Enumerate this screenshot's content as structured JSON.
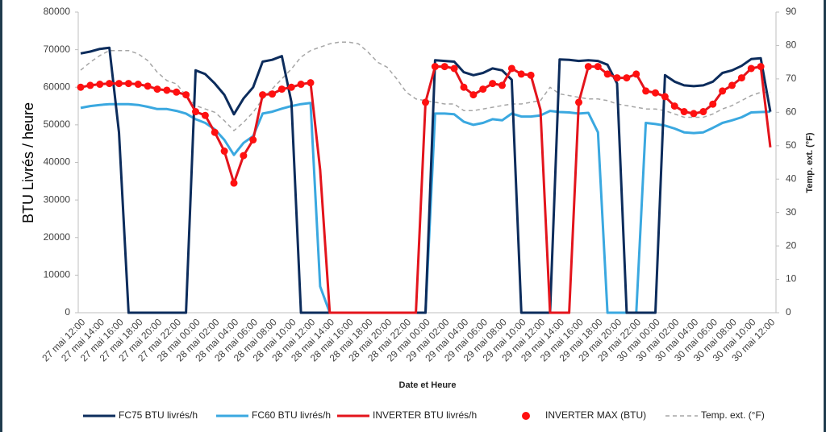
{
  "chart_data": {
    "type": "line",
    "y_label": "BTU Livrés / heure",
    "y2_label": "Temp. ext. (°F)",
    "x_label": "Date et Heure",
    "categories": [
      "27 mai 12:00",
      null,
      "27 mai 14:00",
      null,
      "27 mai 16:00",
      null,
      "27 mai 18:00",
      null,
      "27 mai 20:00",
      null,
      "27 mai 22:00",
      null,
      "28 mai 00:00",
      null,
      "28 mai 02:00",
      null,
      "28 mai 04:00",
      null,
      "28 mai 06:00",
      null,
      "28 mai 08:00",
      null,
      "28 mai 10:00",
      null,
      "28 mai 12:00",
      null,
      "28 mai 14:00",
      null,
      "28 mai 16:00",
      null,
      "28 mai 18:00",
      null,
      "28 mai 20:00",
      null,
      "28 mai 22:00",
      null,
      "29 mai 00:00",
      null,
      "29 mai 02:00",
      null,
      "29 mai 04:00",
      null,
      "29 mai 06:00",
      null,
      "29 mai 08:00",
      null,
      "29 mai 10:00",
      null,
      "29 mai 12:00",
      null,
      "29 mai 14:00",
      null,
      "29 mai 16:00",
      null,
      "29 mai 18:00",
      null,
      "29 mai 20:00",
      null,
      "29 mai 22:00",
      null,
      "30 mai 00:00",
      null,
      "30 mai 02:00",
      null,
      "30 mai 04:00",
      null,
      "30 mai 06:00",
      null,
      "30 mai 08:00",
      null,
      "30 mai 10:00",
      null,
      "30 mai 12:00"
    ],
    "ylim": [
      0,
      80000
    ],
    "yticks": [
      0,
      10000,
      20000,
      30000,
      40000,
      50000,
      60000,
      70000,
      80000
    ],
    "y2lim": [
      0,
      90
    ],
    "y2ticks": [
      0,
      10,
      20,
      30,
      40,
      50,
      60,
      70,
      80,
      90
    ],
    "grid": false,
    "legend": "bottom",
    "series": [
      {
        "name": "FC75 BTU livrés/h",
        "color": "#0c2c5c",
        "mode": "line",
        "dashed": false,
        "values": [
          69000,
          69500,
          70200,
          70500,
          48000,
          0,
          0,
          0,
          0,
          0,
          0,
          0,
          64500,
          63500,
          61000,
          58000,
          52800,
          57000,
          60000,
          66800,
          67300,
          68300,
          56000,
          0,
          0,
          0,
          0,
          0,
          0,
          0,
          0,
          0,
          0,
          0,
          0,
          0,
          0,
          67200,
          67000,
          66800,
          64000,
          63200,
          63800,
          65000,
          64500,
          62000,
          0,
          0,
          0,
          0,
          67400,
          67300,
          67000,
          67200,
          67000,
          66000,
          61000,
          0,
          0,
          0,
          0,
          63200,
          61500,
          60500,
          60300,
          60500,
          61500,
          63800,
          64500,
          65700,
          67500,
          67700,
          53500
        ]
      },
      {
        "name": "FC60 BTU livrés/h",
        "color": "#3aa8e0",
        "mode": "line",
        "dashed": false,
        "values": [
          54500,
          55000,
          55300,
          55500,
          55500,
          55500,
          55300,
          54800,
          54200,
          54200,
          53700,
          53000,
          51500,
          50500,
          48800,
          46000,
          42000,
          45200,
          47000,
          53000,
          53500,
          54300,
          55000,
          55500,
          55800,
          7000,
          0,
          0,
          0,
          0,
          0,
          0,
          0,
          0,
          0,
          0,
          0,
          53000,
          53000,
          52800,
          50800,
          50000,
          50500,
          51500,
          51200,
          53000,
          52200,
          52200,
          52500,
          53700,
          53400,
          53300,
          53000,
          53200,
          48000,
          0,
          0,
          0,
          0,
          50500,
          50200,
          49800,
          49000,
          48000,
          47800,
          48000,
          49200,
          50500,
          51200,
          52000,
          53300,
          53400,
          53500
        ]
      },
      {
        "name": "INVERTER BTU livrés/h",
        "color": "#e3141c",
        "mode": "line",
        "dashed": false,
        "values": [
          60000,
          60500,
          60800,
          61000,
          61000,
          61000,
          60800,
          60300,
          59500,
          59200,
          58700,
          58000,
          53500,
          52500,
          48000,
          43000,
          34500,
          41800,
          46000,
          58000,
          58200,
          59500,
          60000,
          60800,
          61200,
          38000,
          0,
          0,
          0,
          0,
          0,
          0,
          0,
          0,
          0,
          0,
          56000,
          65500,
          65500,
          65000,
          60000,
          58000,
          59500,
          61000,
          60500,
          65000,
          63500,
          63200,
          54000,
          0,
          0,
          0,
          56000,
          65500,
          65500,
          63500,
          62500,
          62500,
          63500,
          59000,
          58500,
          57500,
          55000,
          53500,
          53000,
          53500,
          55500,
          59000,
          60500,
          62500,
          65000,
          65500,
          44000
        ]
      },
      {
        "name": "INVERTER MAX (BTU)",
        "color": "#ff1010",
        "mode": "markers",
        "dashed": false,
        "values": [
          60000,
          60500,
          60800,
          61000,
          61000,
          61000,
          60800,
          60300,
          59500,
          59200,
          58700,
          58000,
          53500,
          52500,
          48000,
          43000,
          34500,
          41800,
          46000,
          58000,
          58200,
          59500,
          60000,
          60800,
          61200,
          null,
          null,
          null,
          null,
          null,
          null,
          null,
          null,
          null,
          null,
          null,
          56000,
          65500,
          65500,
          65000,
          60000,
          58000,
          59500,
          61000,
          60500,
          65000,
          63500,
          63200,
          null,
          null,
          null,
          null,
          56000,
          65500,
          65500,
          63500,
          62500,
          62500,
          63500,
          59000,
          58500,
          57500,
          55000,
          53500,
          53000,
          53500,
          55500,
          59000,
          60500,
          62500,
          65000,
          65500,
          null
        ]
      },
      {
        "name": "Temp. ext. (°F)",
        "color": "#a6a6a6",
        "mode": "line",
        "dashed": true,
        "axis": "y2",
        "values": [
          72.6,
          75,
          77,
          78.5,
          78.5,
          78.5,
          77.5,
          75.5,
          72,
          69.5,
          68.5,
          65,
          62,
          61,
          60,
          57.5,
          54.5,
          57,
          60,
          64,
          67,
          70,
          73,
          76.5,
          78.5,
          79.5,
          80.5,
          81,
          81,
          80.5,
          78,
          75,
          73.5,
          70,
          66,
          64,
          63.5,
          63,
          62.5,
          62.5,
          60.5,
          60.5,
          61,
          61.5,
          62,
          62.5,
          62.5,
          63,
          63.5,
          67.5,
          65.5,
          65,
          64.5,
          64,
          64,
          63.5,
          62.5,
          62,
          61.5,
          61,
          61,
          60.5,
          59.5,
          58.5,
          58.5,
          58.5,
          59.5,
          61,
          62,
          63.5,
          65,
          66,
          66
        ]
      }
    ]
  }
}
